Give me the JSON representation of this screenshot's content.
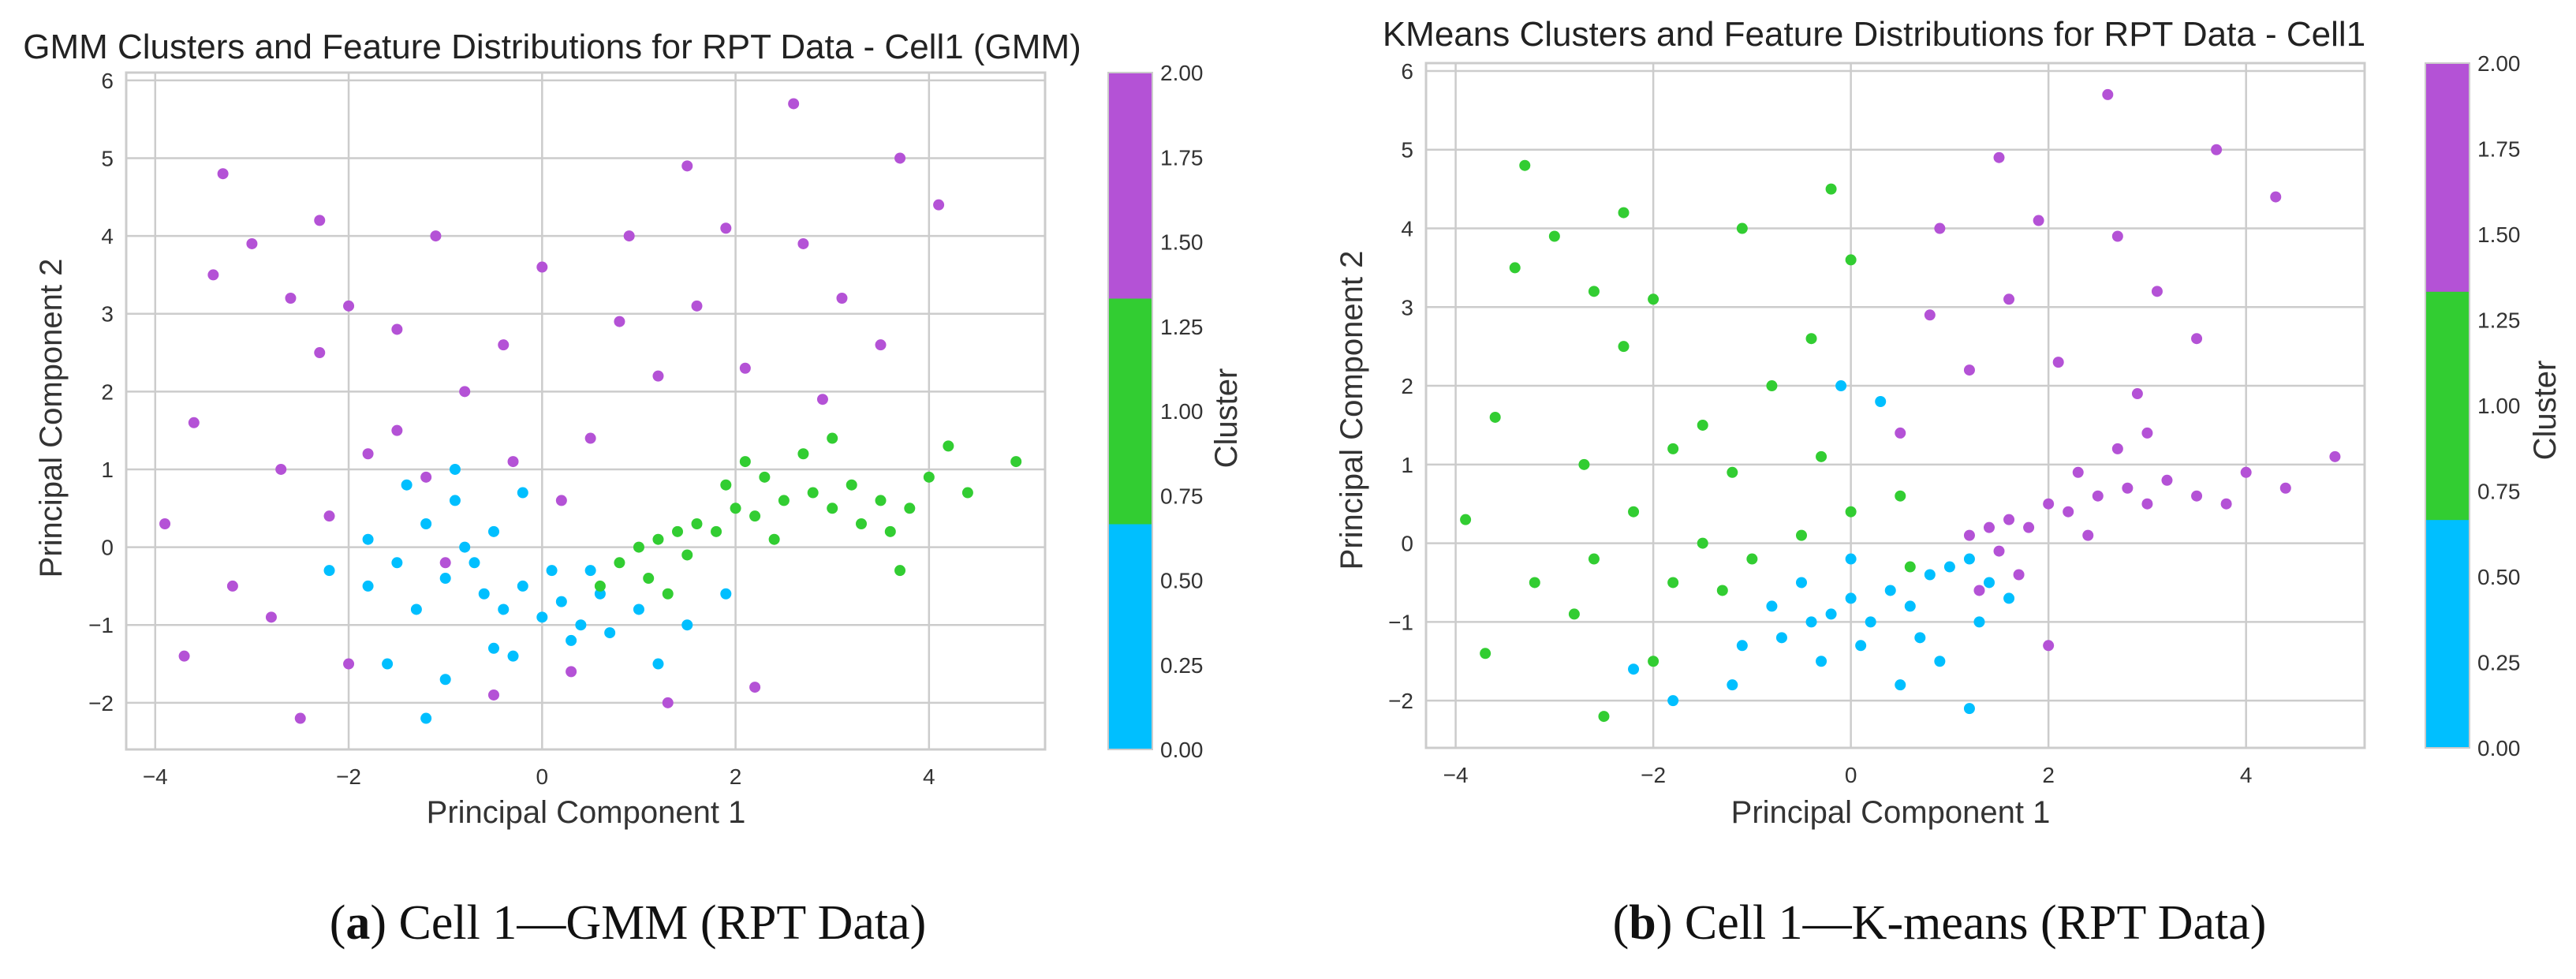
{
  "figure": {
    "captions": [
      {
        "letter": "a",
        "text": " Cell 1—GMM (RPT Data)"
      },
      {
        "letter": "b",
        "text": " Cell 1—K-means (RPT Data)"
      }
    ]
  },
  "colors": {
    "cluster_0": "#00bfff",
    "cluster_1": "#32cd32",
    "cluster_2": "#b452d6"
  },
  "chart_data": [
    {
      "type": "scatter",
      "title": "GMM Clusters and Feature Distributions for RPT Data - Cell1 (GMM)",
      "xlabel": "Principal Component 1",
      "ylabel": "Principal Component 2",
      "xlim": [
        -4.3,
        5.2
      ],
      "ylim": [
        -2.6,
        6.1
      ],
      "xticks": [
        -4,
        -2,
        0,
        2,
        4
      ],
      "xtick_labels": [
        "−4",
        "−2",
        "0",
        "2",
        "4"
      ],
      "yticks": [
        -2,
        -1,
        0,
        1,
        2,
        3,
        4,
        5,
        6
      ],
      "ytick_labels": [
        "−2",
        "−1",
        "0",
        "1",
        "2",
        "3",
        "4",
        "5",
        "6"
      ],
      "grid": true,
      "colorbar": {
        "label": "Cluster",
        "range": [
          0,
          2
        ],
        "ticks": [
          0,
          0.25,
          0.5,
          0.75,
          1.0,
          1.25,
          1.5,
          1.75,
          2.0
        ],
        "tick_labels": [
          "0.00",
          "0.25",
          "0.50",
          "0.75",
          "1.00",
          "1.25",
          "1.50",
          "1.75",
          "2.00"
        ],
        "bands": [
          "cluster_0",
          "cluster_1",
          "cluster_2"
        ]
      },
      "series": [
        {
          "name": "Cluster 0",
          "color": "cluster_0",
          "points": [
            [
              -1.8,
              0.1
            ],
            [
              -1.5,
              -0.2
            ],
            [
              -1.2,
              0.3
            ],
            [
              -1.0,
              -0.4
            ],
            [
              -0.8,
              0.0
            ],
            [
              -0.6,
              -0.6
            ],
            [
              -0.4,
              -0.8
            ],
            [
              -0.2,
              -0.5
            ],
            [
              0.0,
              -0.9
            ],
            [
              0.2,
              -0.7
            ],
            [
              0.4,
              -1.0
            ],
            [
              0.6,
              -0.6
            ],
            [
              -1.3,
              -0.8
            ],
            [
              -0.9,
              0.6
            ],
            [
              -0.5,
              0.2
            ],
            [
              0.1,
              -0.3
            ],
            [
              -1.6,
              -1.5
            ],
            [
              -1.0,
              -1.7
            ],
            [
              -0.5,
              -1.3
            ],
            [
              0.3,
              -1.2
            ],
            [
              1.0,
              -0.8
            ],
            [
              1.5,
              -1.0
            ],
            [
              1.9,
              -0.6
            ],
            [
              -0.2,
              0.7
            ],
            [
              -1.8,
              -0.5
            ],
            [
              -1.4,
              0.8
            ],
            [
              -0.7,
              -0.2
            ],
            [
              0.5,
              -0.3
            ],
            [
              -2.2,
              -0.3
            ],
            [
              -0.3,
              -1.4
            ],
            [
              1.2,
              -1.5
            ],
            [
              -1.2,
              -2.2
            ],
            [
              -0.9,
              1.0
            ],
            [
              0.7,
              -1.1
            ]
          ]
        },
        {
          "name": "Cluster 1",
          "color": "cluster_1",
          "points": [
            [
              0.8,
              -0.2
            ],
            [
              1.0,
              0.0
            ],
            [
              1.2,
              0.1
            ],
            [
              1.4,
              0.2
            ],
            [
              1.6,
              0.3
            ],
            [
              1.8,
              0.2
            ],
            [
              2.0,
              0.5
            ],
            [
              2.2,
              0.4
            ],
            [
              2.5,
              0.6
            ],
            [
              2.8,
              0.7
            ],
            [
              3.0,
              0.5
            ],
            [
              3.2,
              0.8
            ],
            [
              3.5,
              0.6
            ],
            [
              3.8,
              0.5
            ],
            [
              4.0,
              0.9
            ],
            [
              4.4,
              0.7
            ],
            [
              4.9,
              1.1
            ],
            [
              1.1,
              -0.4
            ],
            [
              1.5,
              -0.1
            ],
            [
              2.3,
              0.9
            ],
            [
              2.7,
              1.2
            ],
            [
              3.0,
              1.4
            ],
            [
              3.6,
              0.2
            ],
            [
              1.9,
              0.8
            ],
            [
              2.4,
              0.1
            ],
            [
              3.3,
              0.3
            ],
            [
              4.2,
              1.3
            ],
            [
              2.1,
              1.1
            ],
            [
              3.7,
              -0.3
            ],
            [
              0.6,
              -0.5
            ],
            [
              1.3,
              -0.6
            ]
          ]
        },
        {
          "name": "Cluster 2",
          "color": "cluster_2",
          "points": [
            [
              -3.3,
              4.8
            ],
            [
              -3.0,
              3.9
            ],
            [
              -2.6,
              3.2
            ],
            [
              -2.3,
              2.5
            ],
            [
              -2.0,
              3.1
            ],
            [
              -1.8,
              1.2
            ],
            [
              -1.5,
              1.5
            ],
            [
              -1.2,
              0.9
            ],
            [
              -0.8,
              2.0
            ],
            [
              -0.4,
              2.6
            ],
            [
              0.0,
              3.6
            ],
            [
              0.5,
              1.4
            ],
            [
              0.8,
              2.9
            ],
            [
              1.2,
              2.2
            ],
            [
              1.5,
              4.9
            ],
            [
              1.6,
              3.1
            ],
            [
              2.1,
              2.3
            ],
            [
              2.6,
              5.7
            ],
            [
              2.7,
              3.9
            ],
            [
              3.1,
              3.2
            ],
            [
              3.7,
              5.0
            ],
            [
              4.1,
              4.4
            ],
            [
              -3.6,
              1.6
            ],
            [
              -3.9,
              0.3
            ],
            [
              -3.2,
              -0.5
            ],
            [
              -2.8,
              -0.9
            ],
            [
              -2.5,
              -2.2
            ],
            [
              -2.0,
              -1.5
            ],
            [
              -3.7,
              -1.4
            ],
            [
              -0.5,
              -1.9
            ],
            [
              0.3,
              -1.6
            ],
            [
              1.3,
              -2.0
            ],
            [
              2.2,
              -1.8
            ],
            [
              -1.5,
              2.8
            ],
            [
              -0.3,
              1.1
            ],
            [
              0.2,
              0.6
            ],
            [
              -2.7,
              1.0
            ],
            [
              -3.4,
              3.5
            ],
            [
              2.9,
              1.9
            ],
            [
              -1.1,
              4.0
            ],
            [
              0.9,
              4.0
            ],
            [
              1.9,
              4.1
            ],
            [
              -2.2,
              0.4
            ],
            [
              -1.0,
              -0.2
            ],
            [
              -2.3,
              4.2
            ],
            [
              3.5,
              2.6
            ]
          ]
        }
      ]
    },
    {
      "type": "scatter",
      "title": "KMeans Clusters and Feature Distributions for RPT Data - Cell1",
      "xlabel": "Principal Component 1",
      "ylabel": "Principal Component 2",
      "xlim": [
        -4.3,
        5.2
      ],
      "ylim": [
        -2.6,
        6.1
      ],
      "xticks": [
        -4,
        -2,
        0,
        2,
        4
      ],
      "xtick_labels": [
        "−4",
        "−2",
        "0",
        "2",
        "4"
      ],
      "yticks": [
        -2,
        -1,
        0,
        1,
        2,
        3,
        4,
        5,
        6
      ],
      "ytick_labels": [
        "−2",
        "−1",
        "0",
        "1",
        "2",
        "3",
        "4",
        "5",
        "6"
      ],
      "grid": true,
      "colorbar": {
        "label": "Cluster",
        "range": [
          0,
          2
        ],
        "ticks": [
          0,
          0.25,
          0.5,
          0.75,
          1.0,
          1.25,
          1.5,
          1.75,
          2.0
        ],
        "tick_labels": [
          "0.00",
          "0.25",
          "0.50",
          "0.75",
          "1.00",
          "1.25",
          "1.50",
          "1.75",
          "2.00"
        ],
        "bands": [
          "cluster_0",
          "cluster_1",
          "cluster_2"
        ]
      },
      "series": [
        {
          "name": "Cluster 0",
          "color": "cluster_0",
          "points": [
            [
              -0.5,
              -0.5
            ],
            [
              -0.2,
              -0.9
            ],
            [
              0.0,
              -0.7
            ],
            [
              0.2,
              -1.0
            ],
            [
              0.4,
              -0.6
            ],
            [
              0.6,
              -0.8
            ],
            [
              0.8,
              -0.4
            ],
            [
              1.0,
              -0.3
            ],
            [
              1.2,
              -0.2
            ],
            [
              -0.7,
              -1.2
            ],
            [
              -0.3,
              -1.5
            ],
            [
              0.1,
              -1.3
            ],
            [
              0.5,
              -1.8
            ],
            [
              0.9,
              -1.5
            ],
            [
              1.3,
              -1.0
            ],
            [
              1.6,
              -0.7
            ],
            [
              -1.2,
              -1.8
            ],
            [
              -1.8,
              -2.0
            ],
            [
              -2.2,
              -1.6
            ],
            [
              -1.1,
              -1.3
            ],
            [
              1.2,
              -2.1
            ],
            [
              0.3,
              1.8
            ],
            [
              -0.1,
              2.0
            ],
            [
              0.7,
              -1.2
            ],
            [
              1.4,
              -0.5
            ],
            [
              -0.8,
              -0.8
            ],
            [
              0.0,
              -0.2
            ],
            [
              -0.4,
              -1.0
            ]
          ]
        },
        {
          "name": "Cluster 1",
          "color": "cluster_1",
          "points": [
            [
              -3.3,
              4.8
            ],
            [
              -3.0,
              3.9
            ],
            [
              -2.6,
              3.2
            ],
            [
              -2.3,
              2.5
            ],
            [
              -2.0,
              3.1
            ],
            [
              -1.8,
              1.2
            ],
            [
              -1.5,
              1.5
            ],
            [
              -1.2,
              0.9
            ],
            [
              -0.8,
              2.0
            ],
            [
              -0.4,
              2.6
            ],
            [
              0.0,
              3.6
            ],
            [
              -3.6,
              1.6
            ],
            [
              -3.9,
              0.3
            ],
            [
              -3.2,
              -0.5
            ],
            [
              -2.8,
              -0.9
            ],
            [
              -2.5,
              -2.2
            ],
            [
              -2.0,
              -1.5
            ],
            [
              -3.7,
              -1.4
            ],
            [
              -1.0,
              -0.2
            ],
            [
              -0.5,
              0.1
            ],
            [
              0.0,
              0.4
            ],
            [
              0.5,
              0.6
            ],
            [
              -2.2,
              0.4
            ],
            [
              -1.5,
              0.0
            ],
            [
              -1.1,
              4.0
            ],
            [
              -2.3,
              4.2
            ],
            [
              -3.4,
              3.5
            ],
            [
              -2.7,
              1.0
            ],
            [
              -0.3,
              1.1
            ],
            [
              -1.8,
              -0.5
            ],
            [
              -0.2,
              4.5
            ],
            [
              0.6,
              -0.3
            ],
            [
              -1.3,
              -0.6
            ],
            [
              -2.6,
              -0.2
            ]
          ]
        },
        {
          "name": "Cluster 2",
          "color": "cluster_2",
          "points": [
            [
              1.2,
              0.1
            ],
            [
              1.4,
              0.2
            ],
            [
              1.6,
              0.3
            ],
            [
              1.8,
              0.2
            ],
            [
              2.0,
              0.5
            ],
            [
              2.2,
              0.4
            ],
            [
              2.5,
              0.6
            ],
            [
              2.8,
              0.7
            ],
            [
              3.0,
              0.5
            ],
            [
              3.2,
              0.8
            ],
            [
              3.5,
              0.6
            ],
            [
              3.8,
              0.5
            ],
            [
              4.0,
              0.9
            ],
            [
              4.4,
              0.7
            ],
            [
              4.9,
              1.1
            ],
            [
              1.5,
              -0.1
            ],
            [
              2.3,
              0.9
            ],
            [
              2.7,
              1.2
            ],
            [
              3.0,
              1.4
            ],
            [
              0.5,
              1.4
            ],
            [
              0.8,
              2.9
            ],
            [
              1.2,
              2.2
            ],
            [
              1.5,
              4.9
            ],
            [
              1.6,
              3.1
            ],
            [
              2.1,
              2.3
            ],
            [
              2.6,
              5.7
            ],
            [
              2.7,
              3.9
            ],
            [
              3.1,
              3.2
            ],
            [
              3.7,
              5.0
            ],
            [
              4.3,
              4.4
            ],
            [
              1.3,
              -0.6
            ],
            [
              2.0,
              -1.3
            ],
            [
              2.9,
              1.9
            ],
            [
              1.9,
              4.1
            ],
            [
              0.9,
              4.0
            ],
            [
              3.5,
              2.6
            ],
            [
              1.7,
              -0.4
            ],
            [
              2.4,
              0.1
            ]
          ]
        }
      ]
    }
  ]
}
